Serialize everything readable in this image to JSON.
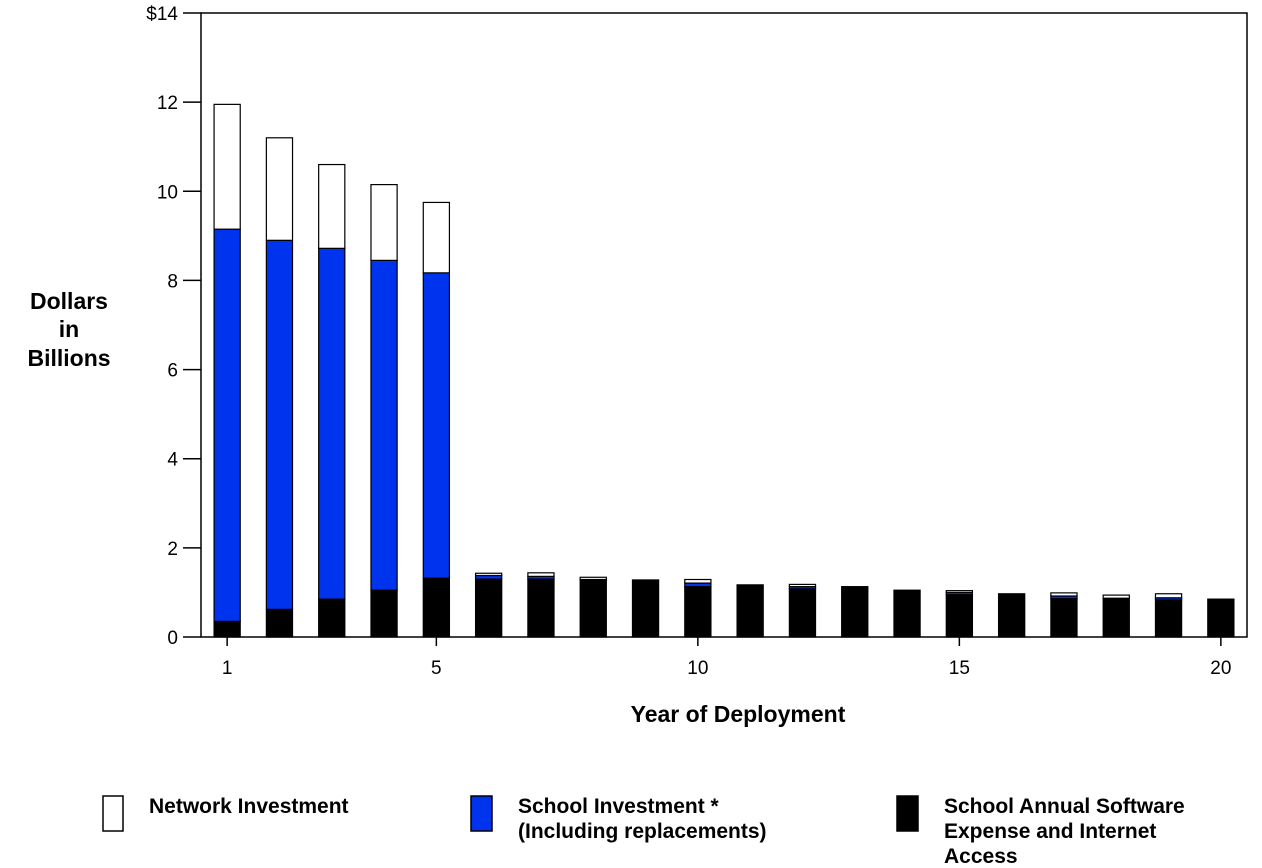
{
  "chart_data": {
    "type": "bar",
    "stacked": true,
    "xlabel": "Year of Deployment",
    "ylabel": [
      "Dollars",
      "in",
      "Billions"
    ],
    "ylim": [
      0,
      14
    ],
    "xlim": [
      0.5,
      20.5
    ],
    "y_ticks": [
      0,
      2,
      4,
      6,
      8,
      10,
      12,
      14
    ],
    "y_tick_labels": [
      "0",
      "2",
      "4",
      "6",
      "8",
      "10",
      "12",
      "$14"
    ],
    "x_ticks": [
      1,
      5,
      10,
      15,
      20
    ],
    "x_tick_labels": [
      "1",
      "5",
      "10",
      "15",
      "20"
    ],
    "grid": false,
    "legend_position": "bottom",
    "categories": [
      1,
      2,
      3,
      4,
      5,
      6,
      7,
      8,
      9,
      10,
      11,
      12,
      13,
      14,
      15,
      16,
      17,
      18,
      19,
      20
    ],
    "series": [
      {
        "key": "software",
        "name": [
          "School Annual Software",
          "Expense and Internet",
          "Access"
        ],
        "color": "#000000",
        "values": [
          0.35,
          0.62,
          0.85,
          1.05,
          1.32,
          1.3,
          1.3,
          1.27,
          1.28,
          1.13,
          1.17,
          1.08,
          1.13,
          1.05,
          0.95,
          0.97,
          0.86,
          0.87,
          0.83,
          0.85
        ]
      },
      {
        "key": "school",
        "name": [
          "School Investment *",
          "(Including replacements)"
        ],
        "color": "#0033ee",
        "values": [
          8.8,
          8.28,
          7.87,
          7.4,
          6.85,
          0.08,
          0.06,
          0.02,
          0.0,
          0.08,
          0.0,
          0.05,
          0.0,
          0.0,
          0.05,
          0.0,
          0.06,
          0.0,
          0.05,
          0.0
        ]
      },
      {
        "key": "network",
        "name": [
          "Network Investment"
        ],
        "color": "#ffffff",
        "values": [
          2.8,
          2.3,
          1.88,
          1.7,
          1.58,
          0.05,
          0.08,
          0.05,
          0.0,
          0.08,
          0.0,
          0.05,
          0.0,
          0.0,
          0.04,
          0.0,
          0.07,
          0.07,
          0.09,
          0.0
        ]
      }
    ]
  }
}
